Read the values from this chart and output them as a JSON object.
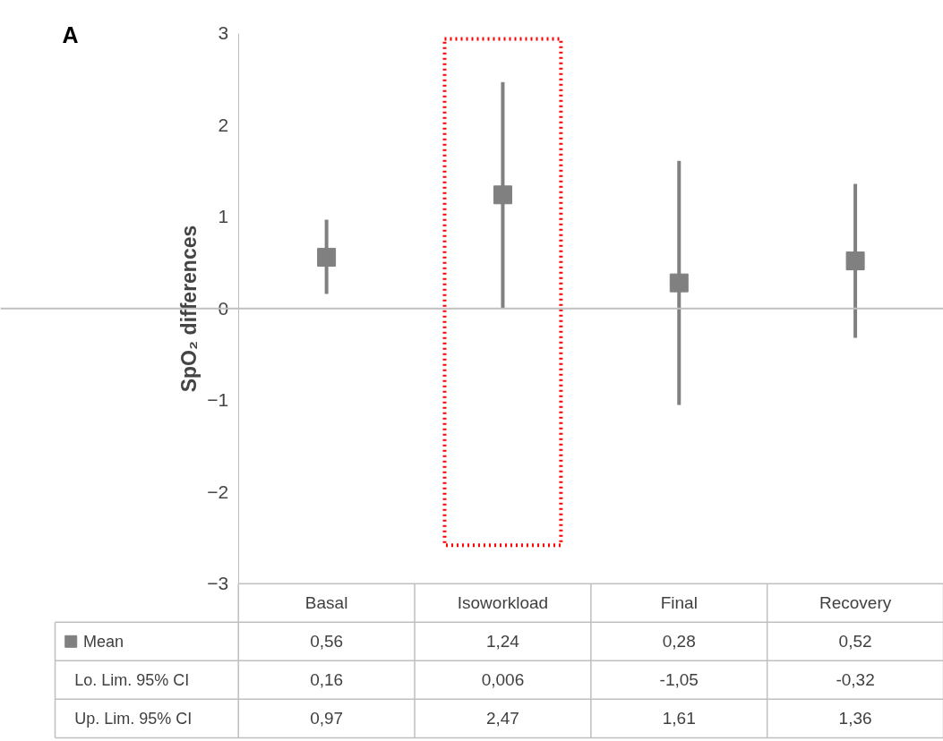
{
  "chart_data": {
    "type": "scatter",
    "ylabel": "SpO₂ differences",
    "categories": [
      "Basal",
      "Isoworkload",
      "Final",
      "Recovery"
    ],
    "series": [
      {
        "name": "Mean",
        "color": "#808080",
        "values": [
          0.56,
          1.24,
          0.28,
          0.52
        ],
        "value_labels": [
          "0,56",
          "1,24",
          "0,28",
          "0,52"
        ],
        "errors": [
          [
            0.16,
            0.97
          ],
          [
            0.006,
            2.47
          ],
          [
            -1.05,
            1.61
          ],
          [
            -0.32,
            1.36
          ]
        ]
      }
    ],
    "ylim": [
      -3,
      3
    ],
    "yticks": [
      -3,
      -2,
      -1,
      0,
      1,
      2,
      3
    ],
    "marker": "square",
    "grid": false,
    "ref_lines": [
      {
        "axis": "y",
        "value": 0,
        "color": "#bfbfbf"
      }
    ],
    "annotations": [
      "A",
      "Lo. Lim. 95% CI",
      "0,16",
      "0,006",
      "-1,05",
      "-0,32",
      "Up. Lim. 95% CI",
      "0,97",
      "2,47",
      "1,61",
      "1,36"
    ]
  }
}
